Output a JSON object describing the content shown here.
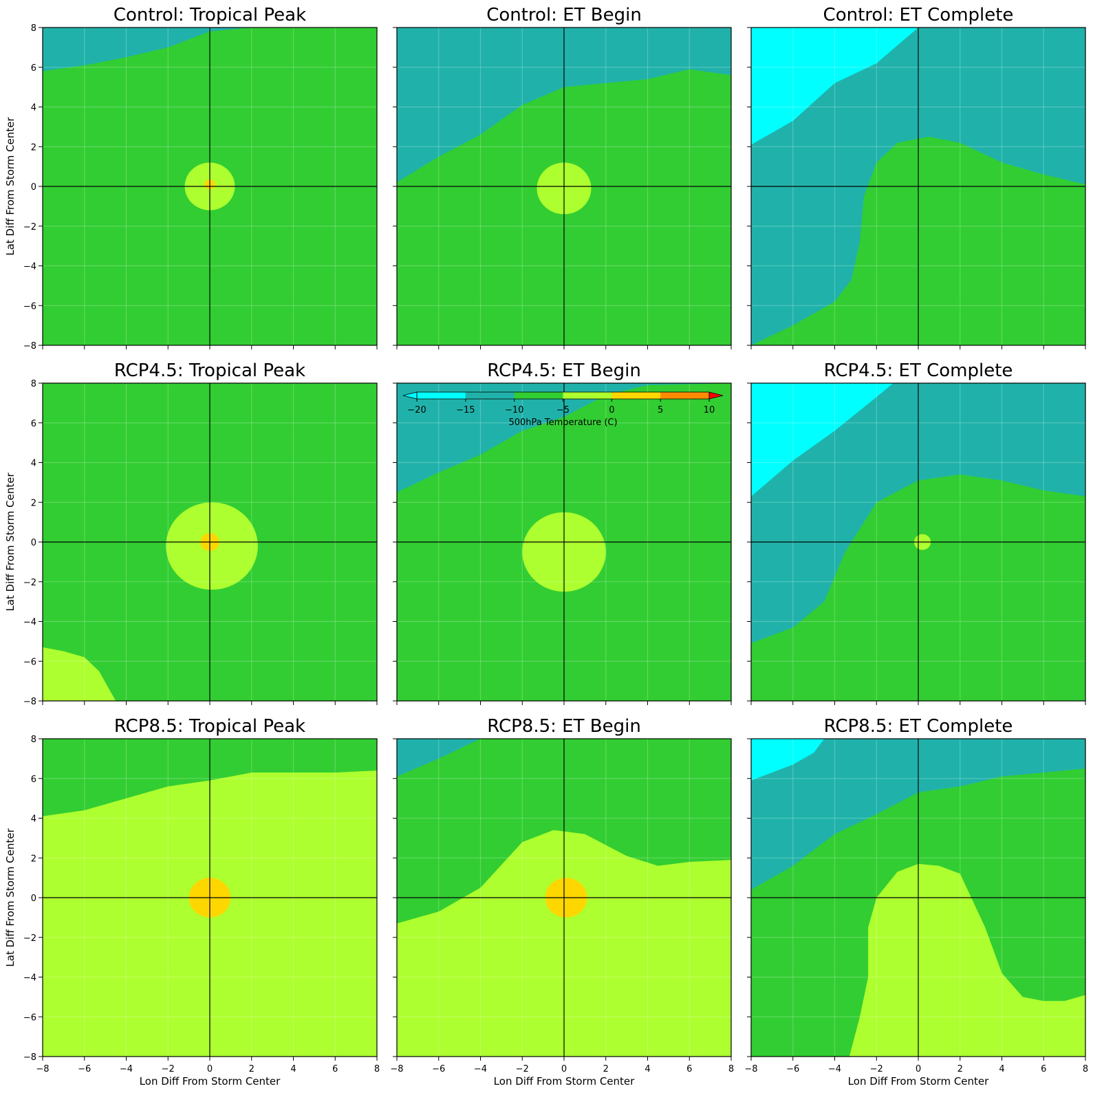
{
  "chart_data": {
    "type": "heatmap",
    "variable_label": "500hPa Temperature (C)",
    "xlabel": "Lon Diff From Storm Center",
    "ylabel": "Lat Diff From Storm Center",
    "xlim": [
      -8,
      8
    ],
    "ylim": [
      -8,
      8
    ],
    "xticks": [
      -8,
      -6,
      -4,
      -2,
      0,
      2,
      4,
      6,
      8
    ],
    "yticks": [
      -8,
      -6,
      -4,
      -2,
      0,
      2,
      4,
      6,
      8
    ],
    "xtick_labels": [
      "−8",
      "−6",
      "−4",
      "−2",
      "0",
      "2",
      "4",
      "6",
      "8"
    ],
    "ytick_labels": [
      "−8",
      "−6",
      "−4",
      "−2",
      "0",
      "2",
      "4",
      "6",
      "8"
    ],
    "grid": true,
    "colorbar": {
      "placement": "inset top of center panel",
      "extend": "both",
      "levels": [
        -20,
        -15,
        -10,
        -5,
        0,
        5,
        10
      ],
      "tick_labels": [
        "−20",
        "−15",
        "−10",
        "−5",
        "0",
        "5",
        "10"
      ],
      "colors": [
        "#00ffff",
        "#20b2aa",
        "#32cd32",
        "#adff2f",
        "#ffd700",
        "#ff8c00"
      ],
      "under_color": "#00ffff",
      "over_color": "#ff0000"
    },
    "panels": [
      {
        "title": "Control: Tropical Peak",
        "background": "#32cd32",
        "regions": [
          {
            "color": "#20b2aa",
            "points": [
              [
                -8,
                5.8
              ],
              [
                -6,
                6.1
              ],
              [
                -4,
                6.5
              ],
              [
                -2,
                7.0
              ],
              [
                0,
                7.8
              ],
              [
                2,
                8
              ],
              [
                -8,
                8
              ]
            ]
          },
          {
            "color": "#adff2f",
            "circle": [
              0,
              0,
              1.2
            ]
          },
          {
            "color": "#ffd700",
            "circle": [
              0,
              0.1,
              0.25
            ]
          }
        ]
      },
      {
        "title": "Control: ET Begin",
        "background": "#32cd32",
        "regions": [
          {
            "color": "#20b2aa",
            "points": [
              [
                -8,
                0.2
              ],
              [
                -6,
                1.5
              ],
              [
                -4,
                2.6
              ],
              [
                -2,
                4.1
              ],
              [
                0,
                5.0
              ],
              [
                2,
                5.2
              ],
              [
                4,
                5.4
              ],
              [
                6,
                5.9
              ],
              [
                8,
                5.6
              ],
              [
                8,
                8
              ],
              [
                -8,
                8
              ]
            ]
          },
          {
            "color": "#adff2f",
            "circle": [
              0,
              -0.1,
              1.3
            ]
          }
        ]
      },
      {
        "title": "Control: ET Complete",
        "background": "#32cd32",
        "regions": [
          {
            "color": "#20b2aa",
            "points": [
              [
                -8,
                8
              ],
              [
                8,
                8
              ],
              [
                8,
                0.1
              ],
              [
                6,
                0.6
              ],
              [
                4,
                1.2
              ],
              [
                2,
                2.2
              ],
              [
                0.5,
                2.5
              ],
              [
                -1,
                2.2
              ],
              [
                -2,
                1.2
              ],
              [
                -2.6,
                -0.5
              ],
              [
                -2.8,
                -2.8
              ],
              [
                -3.2,
                -4.7
              ],
              [
                -4,
                -5.8
              ],
              [
                -6,
                -7
              ],
              [
                -8,
                -8
              ]
            ]
          },
          {
            "color": "#00ffff",
            "points": [
              [
                -8,
                8
              ],
              [
                0,
                8
              ],
              [
                -2,
                6.2
              ],
              [
                -4,
                5.2
              ],
              [
                -6,
                3.3
              ],
              [
                -8,
                2.1
              ]
            ]
          }
        ]
      },
      {
        "title": "RCP4.5: Tropical Peak",
        "background": "#32cd32",
        "regions": [
          {
            "color": "#adff2f",
            "circle": [
              0.1,
              -0.2,
              2.2
            ]
          },
          {
            "color": "#ffd700",
            "circle": [
              0,
              0,
              0.45
            ]
          },
          {
            "color": "#adff2f",
            "points": [
              [
                -8,
                -5.3
              ],
              [
                -7,
                -5.5
              ],
              [
                -6,
                -5.8
              ],
              [
                -5.3,
                -6.5
              ],
              [
                -4.5,
                -8
              ],
              [
                -8,
                -8
              ]
            ]
          }
        ]
      },
      {
        "title": "RCP4.5: ET Begin",
        "background": "#32cd32",
        "regions": [
          {
            "color": "#20b2aa",
            "points": [
              [
                -8,
                2.5
              ],
              [
                -6,
                3.5
              ],
              [
                -4,
                4.4
              ],
              [
                -2,
                5.6
              ],
              [
                0,
                6.3
              ],
              [
                2,
                7.4
              ],
              [
                4,
                7.9
              ],
              [
                8,
                8
              ],
              [
                -8,
                8
              ]
            ]
          },
          {
            "color": "#adff2f",
            "circle": [
              0,
              -0.5,
              2.0
            ]
          }
        ]
      },
      {
        "title": "RCP4.5: ET Complete",
        "background": "#32cd32",
        "regions": [
          {
            "color": "#20b2aa",
            "points": [
              [
                -8,
                8
              ],
              [
                8,
                8
              ],
              [
                8,
                2.3
              ],
              [
                6,
                2.6
              ],
              [
                4,
                3.1
              ],
              [
                2,
                3.4
              ],
              [
                0,
                3.1
              ],
              [
                -2,
                2.0
              ],
              [
                -3.5,
                -0.5
              ],
              [
                -4.5,
                -3.0
              ],
              [
                -6,
                -4.3
              ],
              [
                -8,
                -5.1
              ]
            ]
          },
          {
            "color": "#00ffff",
            "points": [
              [
                -8,
                8
              ],
              [
                -1.2,
                8
              ],
              [
                -2,
                7.3
              ],
              [
                -4,
                5.6
              ],
              [
                -6,
                4.1
              ],
              [
                -8,
                2.3
              ]
            ]
          },
          {
            "color": "#adff2f",
            "circle": [
              0.2,
              0,
              0.4
            ]
          }
        ]
      },
      {
        "title": "RCP8.5: Tropical Peak",
        "background": "#32cd32",
        "regions": [
          {
            "color": "#adff2f",
            "points": [
              [
                -8,
                4.1
              ],
              [
                -6,
                4.4
              ],
              [
                -4,
                5.0
              ],
              [
                -2,
                5.6
              ],
              [
                0,
                5.9
              ],
              [
                2,
                6.3
              ],
              [
                4,
                6.3
              ],
              [
                6,
                6.3
              ],
              [
                8,
                6.4
              ],
              [
                8,
                -8
              ],
              [
                -8,
                -8
              ]
            ]
          },
          {
            "color": "#ffd700",
            "circle": [
              0,
              0,
              1.0
            ]
          }
        ]
      },
      {
        "title": "RCP8.5: ET Begin",
        "background": "#32cd32",
        "regions": [
          {
            "color": "#20b2aa",
            "points": [
              [
                -8,
                6.1
              ],
              [
                -6,
                7.0
              ],
              [
                -4,
                8
              ],
              [
                -8,
                8
              ]
            ]
          },
          {
            "color": "#adff2f",
            "points": [
              [
                -8,
                -1.3
              ],
              [
                -6,
                -0.7
              ],
              [
                -4,
                0.5
              ],
              [
                -2,
                2.8
              ],
              [
                -0.5,
                3.4
              ],
              [
                1,
                3.2
              ],
              [
                3,
                2.1
              ],
              [
                4.5,
                1.6
              ],
              [
                6,
                1.8
              ],
              [
                8,
                1.9
              ],
              [
                8,
                -8
              ],
              [
                -8,
                -8
              ]
            ]
          },
          {
            "color": "#ffd700",
            "circle": [
              0.1,
              0,
              1.0
            ]
          }
        ]
      },
      {
        "title": "RCP8.5: ET Complete",
        "background": "#32cd32",
        "regions": [
          {
            "color": "#20b2aa",
            "points": [
              [
                -8,
                8
              ],
              [
                8,
                8
              ],
              [
                8,
                6.5
              ],
              [
                6,
                6.3
              ],
              [
                4,
                6.1
              ],
              [
                2,
                5.6
              ],
              [
                0,
                5.3
              ],
              [
                -2,
                4.2
              ],
              [
                -4,
                3.2
              ],
              [
                -6,
                1.6
              ],
              [
                -8,
                0.4
              ]
            ]
          },
          {
            "color": "#00ffff",
            "points": [
              [
                -8,
                8
              ],
              [
                -4.5,
                8
              ],
              [
                -5,
                7.3
              ],
              [
                -6,
                6.7
              ],
              [
                -8,
                5.9
              ]
            ]
          },
          {
            "color": "#adff2f",
            "points": [
              [
                -3.3,
                -8
              ],
              [
                -2.8,
                -6.0
              ],
              [
                -2.4,
                -4.0
              ],
              [
                -2.4,
                -1.5
              ],
              [
                -2,
                0
              ],
              [
                -1,
                1.3
              ],
              [
                0,
                1.7
              ],
              [
                1,
                1.6
              ],
              [
                2,
                1.2
              ],
              [
                3.2,
                -1.5
              ],
              [
                4,
                -3.8
              ],
              [
                5,
                -5.0
              ],
              [
                6,
                -5.2
              ],
              [
                7,
                -5.2
              ],
              [
                8,
                -4.9
              ],
              [
                8,
                -8
              ]
            ]
          }
        ]
      }
    ]
  }
}
